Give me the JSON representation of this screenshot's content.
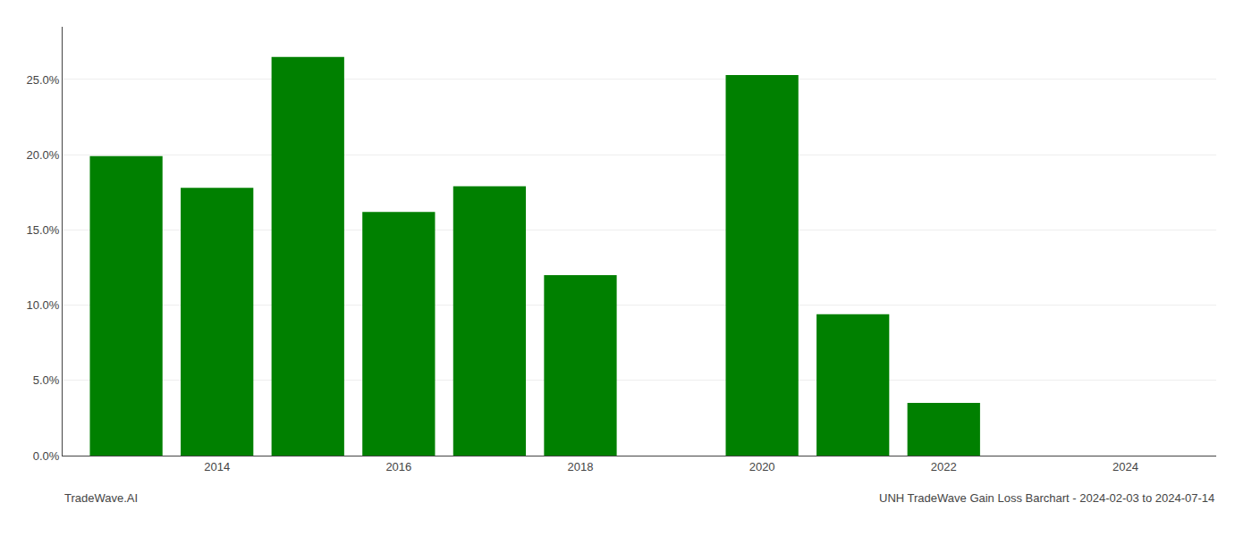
{
  "chart_data": {
    "type": "bar",
    "x": [
      2013,
      2014,
      2015,
      2016,
      2017,
      2018,
      2020,
      2021,
      2022
    ],
    "values": [
      0.199,
      0.178,
      0.265,
      0.162,
      0.179,
      0.12,
      0.253,
      0.094,
      0.035
    ],
    "color": "#008000",
    "xlim": [
      2012.3,
      2025.0
    ],
    "xticks": [
      2014,
      2016,
      2018,
      2020,
      2022,
      2024
    ],
    "ylim": [
      0.0,
      0.285
    ],
    "yticks": [
      {
        "value": 0.0,
        "label": "0.0%"
      },
      {
        "value": 0.05,
        "label": "5.0%"
      },
      {
        "value": 0.1,
        "label": "10.0%"
      },
      {
        "value": 0.15,
        "label": "15.0%"
      },
      {
        "value": 0.2,
        "label": "20.0%"
      },
      {
        "value": 0.25,
        "label": "25.0%"
      }
    ],
    "grid": true,
    "annotations": [
      "TradeWave.AI",
      "UNH TradeWave Gain Loss Barchart - 2024-02-03 to 2024-07-14"
    ]
  }
}
